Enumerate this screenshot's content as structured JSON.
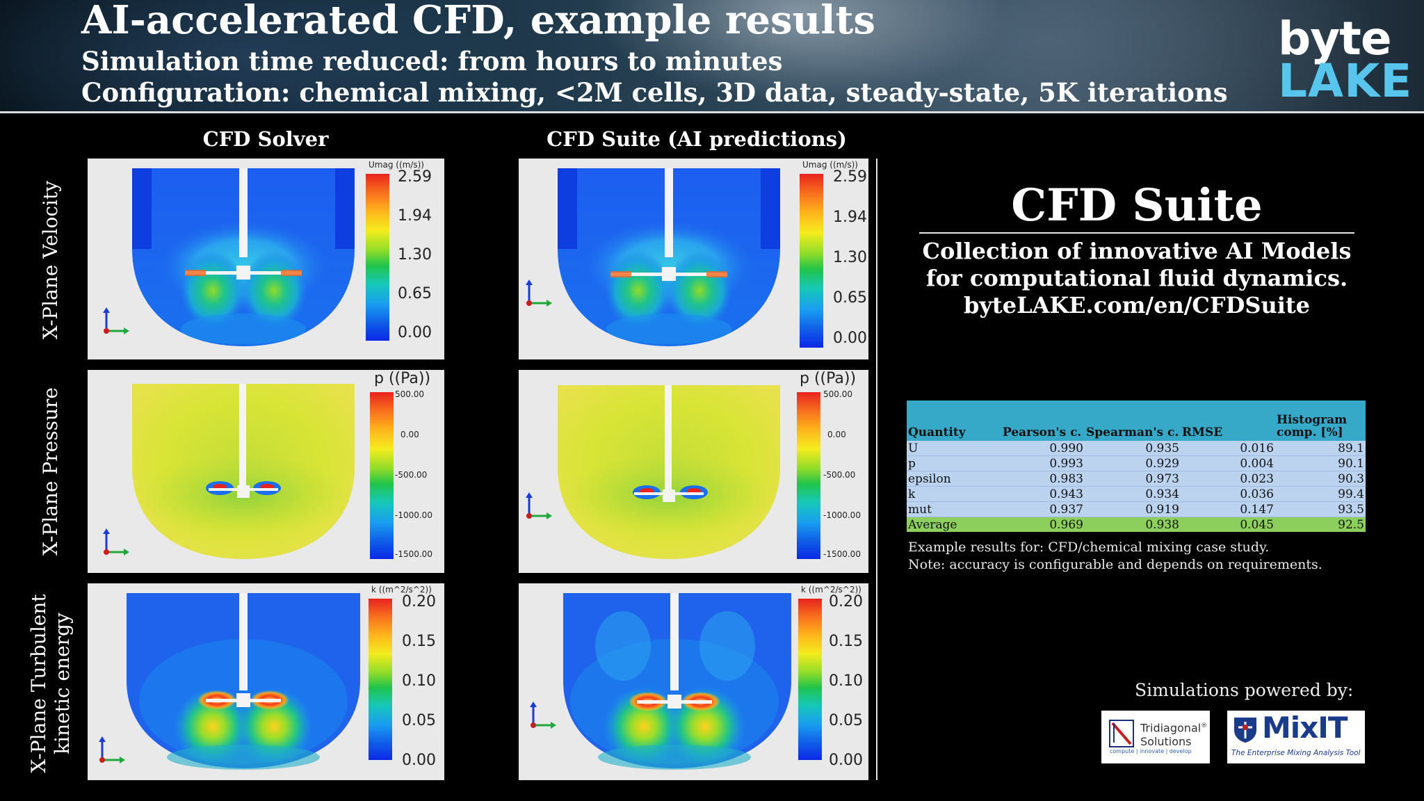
{
  "header": {
    "title": "AI-accelerated CFD, example results",
    "subtitle1": "Simulation time reduced: from hours to minutes",
    "subtitle2": "Configuration: chemical mixing, <2M cells, 3D data, steady-state, 5K iterations"
  },
  "logo": {
    "word1": "byte",
    "word2": "LAKE",
    "color1": "#ffffff",
    "color2": "#58c6ec"
  },
  "columns": {
    "left": "CFD Solver",
    "right": "CFD Suite (AI predictions)"
  },
  "rows": {
    "velocity": "X-Plane Velocity",
    "pressure": "X-Plane Pressure",
    "tke_line1": "X-Plane Turbulent",
    "tke_line2": "kinetic energy"
  },
  "colorbars": {
    "velocity": {
      "title": "Umag ((m/s))",
      "ticks": [
        "2.59",
        "1.94",
        "1.30",
        "0.65",
        "0.00"
      ]
    },
    "pressure": {
      "title": "p ((Pa))",
      "ticks": [
        "500.00",
        "0.00",
        "-500.00",
        "-1000.00",
        "-1500.00"
      ]
    },
    "tke": {
      "title": "k ((m^2/s^2))",
      "ticks": [
        "0.20",
        "0.15",
        "0.10",
        "0.05",
        "0.00"
      ]
    }
  },
  "suite": {
    "title": "CFD Suite",
    "line1": "Collection of innovative AI Models",
    "line2": "for computational fluid dynamics.",
    "line3": "byteLAKE.com/en/CFDSuite"
  },
  "table": {
    "headers": [
      "Quantity",
      "Pearson's c.",
      "Spearman's c.",
      "RMSE",
      "Histogram comp. [%]"
    ],
    "rows": [
      {
        "quantity": "U",
        "pearson": "0.990",
        "spearman": "0.935",
        "rmse": "0.016",
        "hist": "89.1"
      },
      {
        "quantity": "p",
        "pearson": "0.993",
        "spearman": "0.929",
        "rmse": "0.004",
        "hist": "90.1"
      },
      {
        "quantity": "epsilon",
        "pearson": "0.983",
        "spearman": "0.973",
        "rmse": "0.023",
        "hist": "90.3"
      },
      {
        "quantity": "k",
        "pearson": "0.943",
        "spearman": "0.934",
        "rmse": "0.036",
        "hist": "99.4"
      },
      {
        "quantity": "mut",
        "pearson": "0.937",
        "spearman": "0.919",
        "rmse": "0.147",
        "hist": "93.5"
      }
    ],
    "average": {
      "quantity": "Average",
      "pearson": "0.969",
      "spearman": "0.938",
      "rmse": "0.045",
      "hist": "92.5"
    },
    "header_color": "#36a9c9",
    "row_color": "#bcd3ef",
    "average_color": "#8ccf5c"
  },
  "notes": {
    "line1": "Example results for: CFD/chemical mixing case study.",
    "line2": "Note: accuracy is configurable and depends on requirements."
  },
  "powered": {
    "label": "Simulations powered by:",
    "tridiagonal": {
      "name1": "Tridiagonal",
      "registered": "®",
      "name2": "Solutions",
      "tagline": "compute | innovate | develop"
    },
    "mixit": {
      "name": "MixIT",
      "tagline": "The Enterprise Mixing Analysis Tool"
    }
  }
}
